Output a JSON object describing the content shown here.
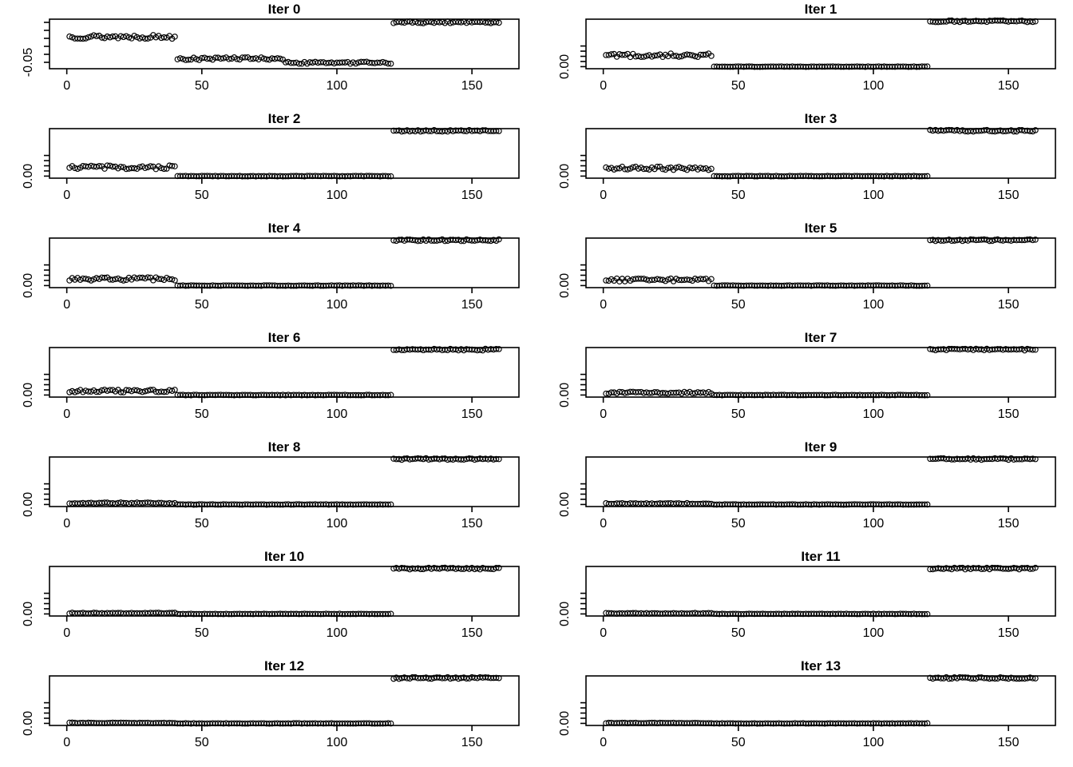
{
  "page": {
    "background_color": "#ffffff",
    "foreground_color": "#000000"
  },
  "chart_data": {
    "type": "scatter",
    "description": "Grid of 14 scatter panels (7 rows x 2 columns) showing point values converging across iterations; open black circles, R base-graphics style",
    "layout": {
      "rows": 7,
      "cols": 2,
      "grid": "off",
      "legend": "none"
    },
    "point_style": {
      "marker": "open-circle",
      "color": "#000000",
      "radius_px": 3.2
    },
    "x": {
      "label": "",
      "ticks": [
        0,
        50,
        100,
        150
      ],
      "tick_labels": [
        "0",
        "50",
        "100",
        "150"
      ],
      "lim": [
        -6.4,
        167.4
      ],
      "n_points_per_panel": 160
    },
    "plots": [
      {
        "title": "Iter 0",
        "ylim": [
          -0.058,
          0.004
        ],
        "yticks": [
          -0.05,
          -0.04,
          -0.03,
          -0.02,
          -0.01,
          0.0
        ],
        "ytick_label": {
          "value": -0.05,
          "text": "-0.05"
        },
        "segments": [
          {
            "x_start": 1,
            "x_end": 40,
            "mean": -0.018,
            "amplitude": 0.0025
          },
          {
            "x_start": 41,
            "x_end": 80,
            "mean": -0.0455,
            "amplitude": 0.0018
          },
          {
            "x_start": 81,
            "x_end": 120,
            "mean": -0.0505,
            "amplitude": 0.0013
          },
          {
            "x_start": 121,
            "x_end": 160,
            "mean": 0.0,
            "amplitude": 0.0012
          }
        ]
      },
      {
        "title": "Iter 1",
        "ylim": [
          -0.004,
          0.092
        ],
        "yticks": [
          0.0,
          0.01,
          0.02,
          0.03,
          0.04
        ],
        "ytick_label": {
          "value": 0.0,
          "text": "0.00"
        },
        "segments": [
          {
            "x_start": 1,
            "x_end": 40,
            "mean": 0.022,
            "amplitude": 0.0035
          },
          {
            "x_start": 41,
            "x_end": 120,
            "mean": 0.0,
            "amplitude": 0.0005
          },
          {
            "x_start": 121,
            "x_end": 160,
            "mean": 0.088,
            "amplitude": 0.0016
          }
        ]
      },
      {
        "title": "Iter 2",
        "ylim": [
          -0.004,
          0.092
        ],
        "yticks": [
          0.0,
          0.01,
          0.02,
          0.03,
          0.04
        ],
        "ytick_label": {
          "value": 0.0,
          "text": "0.00"
        },
        "segments": [
          {
            "x_start": 1,
            "x_end": 40,
            "mean": 0.017,
            "amplitude": 0.0035
          },
          {
            "x_start": 41,
            "x_end": 120,
            "mean": 0.0,
            "amplitude": 0.0005
          },
          {
            "x_start": 121,
            "x_end": 160,
            "mean": 0.088,
            "amplitude": 0.0016
          }
        ]
      },
      {
        "title": "Iter 3",
        "ylim": [
          -0.004,
          0.092
        ],
        "yticks": [
          0.0,
          0.01,
          0.02,
          0.03,
          0.04
        ],
        "ytick_label": {
          "value": 0.0,
          "text": "0.00"
        },
        "segments": [
          {
            "x_start": 1,
            "x_end": 40,
            "mean": 0.015,
            "amplitude": 0.0033
          },
          {
            "x_start": 41,
            "x_end": 120,
            "mean": 0.0,
            "amplitude": 0.0005
          },
          {
            "x_start": 121,
            "x_end": 160,
            "mean": 0.088,
            "amplitude": 0.0016
          }
        ]
      },
      {
        "title": "Iter 4",
        "ylim": [
          -0.004,
          0.092
        ],
        "yticks": [
          0.0,
          0.01,
          0.02,
          0.03,
          0.04
        ],
        "ytick_label": {
          "value": 0.0,
          "text": "0.00"
        },
        "segments": [
          {
            "x_start": 1,
            "x_end": 40,
            "mean": 0.013,
            "amplitude": 0.0032
          },
          {
            "x_start": 41,
            "x_end": 120,
            "mean": 0.0,
            "amplitude": 0.0005
          },
          {
            "x_start": 121,
            "x_end": 160,
            "mean": 0.088,
            "amplitude": 0.0016
          }
        ]
      },
      {
        "title": "Iter 5",
        "ylim": [
          -0.004,
          0.092
        ],
        "yticks": [
          0.0,
          0.01,
          0.02,
          0.03,
          0.04
        ],
        "ytick_label": {
          "value": 0.0,
          "text": "0.00"
        },
        "segments": [
          {
            "x_start": 1,
            "x_end": 40,
            "mean": 0.011,
            "amplitude": 0.003
          },
          {
            "x_start": 41,
            "x_end": 120,
            "mean": 0.0,
            "amplitude": 0.0005
          },
          {
            "x_start": 121,
            "x_end": 160,
            "mean": 0.088,
            "amplitude": 0.0016
          }
        ]
      },
      {
        "title": "Iter 6",
        "ylim": [
          -0.004,
          0.092
        ],
        "yticks": [
          0.0,
          0.01,
          0.02,
          0.03,
          0.04
        ],
        "ytick_label": {
          "value": 0.0,
          "text": "0.00"
        },
        "segments": [
          {
            "x_start": 1,
            "x_end": 40,
            "mean": 0.008,
            "amplitude": 0.0028
          },
          {
            "x_start": 41,
            "x_end": 120,
            "mean": 0.0,
            "amplitude": 0.0005
          },
          {
            "x_start": 121,
            "x_end": 160,
            "mean": 0.088,
            "amplitude": 0.0016
          }
        ]
      },
      {
        "title": "Iter 7",
        "ylim": [
          -0.004,
          0.092
        ],
        "yticks": [
          0.0,
          0.01,
          0.02,
          0.03,
          0.04
        ],
        "ytick_label": {
          "value": 0.0,
          "text": "0.00"
        },
        "segments": [
          {
            "x_start": 1,
            "x_end": 40,
            "mean": 0.0045,
            "amplitude": 0.0018
          },
          {
            "x_start": 41,
            "x_end": 120,
            "mean": 0.0,
            "amplitude": 0.0005
          },
          {
            "x_start": 121,
            "x_end": 160,
            "mean": 0.088,
            "amplitude": 0.0016
          }
        ]
      },
      {
        "title": "Iter 8",
        "ylim": [
          -0.004,
          0.092
        ],
        "yticks": [
          0.0,
          0.01,
          0.02,
          0.03,
          0.04
        ],
        "ytick_label": {
          "value": 0.0,
          "text": "0.00"
        },
        "segments": [
          {
            "x_start": 1,
            "x_end": 40,
            "mean": 0.0028,
            "amplitude": 0.0012
          },
          {
            "x_start": 41,
            "x_end": 120,
            "mean": 0.0,
            "amplitude": 0.0004
          },
          {
            "x_start": 121,
            "x_end": 160,
            "mean": 0.088,
            "amplitude": 0.0016
          }
        ]
      },
      {
        "title": "Iter 9",
        "ylim": [
          -0.004,
          0.092
        ],
        "yticks": [
          0.0,
          0.01,
          0.02,
          0.03,
          0.04
        ],
        "ytick_label": {
          "value": 0.0,
          "text": "0.00"
        },
        "segments": [
          {
            "x_start": 1,
            "x_end": 40,
            "mean": 0.0018,
            "amplitude": 0.0009
          },
          {
            "x_start": 41,
            "x_end": 120,
            "mean": 0.0,
            "amplitude": 0.0004
          },
          {
            "x_start": 121,
            "x_end": 160,
            "mean": 0.088,
            "amplitude": 0.0016
          }
        ]
      },
      {
        "title": "Iter 10",
        "ylim": [
          -0.004,
          0.092
        ],
        "yticks": [
          0.0,
          0.01,
          0.02,
          0.03,
          0.04
        ],
        "ytick_label": {
          "value": 0.0,
          "text": "0.00"
        },
        "segments": [
          {
            "x_start": 1,
            "x_end": 40,
            "mean": 0.0015,
            "amplitude": 0.0008
          },
          {
            "x_start": 41,
            "x_end": 120,
            "mean": 0.0,
            "amplitude": 0.0004
          },
          {
            "x_start": 121,
            "x_end": 160,
            "mean": 0.088,
            "amplitude": 0.0016
          }
        ]
      },
      {
        "title": "Iter 11",
        "ylim": [
          -0.004,
          0.092
        ],
        "yticks": [
          0.0,
          0.01,
          0.02,
          0.03,
          0.04
        ],
        "ytick_label": {
          "value": 0.0,
          "text": "0.00"
        },
        "segments": [
          {
            "x_start": 1,
            "x_end": 40,
            "mean": 0.0012,
            "amplitude": 0.0007
          },
          {
            "x_start": 41,
            "x_end": 120,
            "mean": 0.0,
            "amplitude": 0.0004
          },
          {
            "x_start": 121,
            "x_end": 160,
            "mean": 0.088,
            "amplitude": 0.0016
          }
        ]
      },
      {
        "title": "Iter 12",
        "ylim": [
          -0.004,
          0.092
        ],
        "yticks": [
          0.0,
          0.01,
          0.02,
          0.03,
          0.04
        ],
        "ytick_label": {
          "value": 0.0,
          "text": "0.00"
        },
        "segments": [
          {
            "x_start": 1,
            "x_end": 40,
            "mean": 0.001,
            "amplitude": 0.0006
          },
          {
            "x_start": 41,
            "x_end": 120,
            "mean": 0.0,
            "amplitude": 0.0004
          },
          {
            "x_start": 121,
            "x_end": 160,
            "mean": 0.088,
            "amplitude": 0.0016
          }
        ]
      },
      {
        "title": "Iter 13",
        "ylim": [
          -0.004,
          0.092
        ],
        "yticks": [
          0.0,
          0.01,
          0.02,
          0.03,
          0.04
        ],
        "ytick_label": {
          "value": 0.0,
          "text": "0.00"
        },
        "segments": [
          {
            "x_start": 1,
            "x_end": 40,
            "mean": 0.0008,
            "amplitude": 0.0005
          },
          {
            "x_start": 41,
            "x_end": 120,
            "mean": 0.0,
            "amplitude": 0.0004
          },
          {
            "x_start": 121,
            "x_end": 160,
            "mean": 0.088,
            "amplitude": 0.0016
          }
        ]
      }
    ]
  }
}
